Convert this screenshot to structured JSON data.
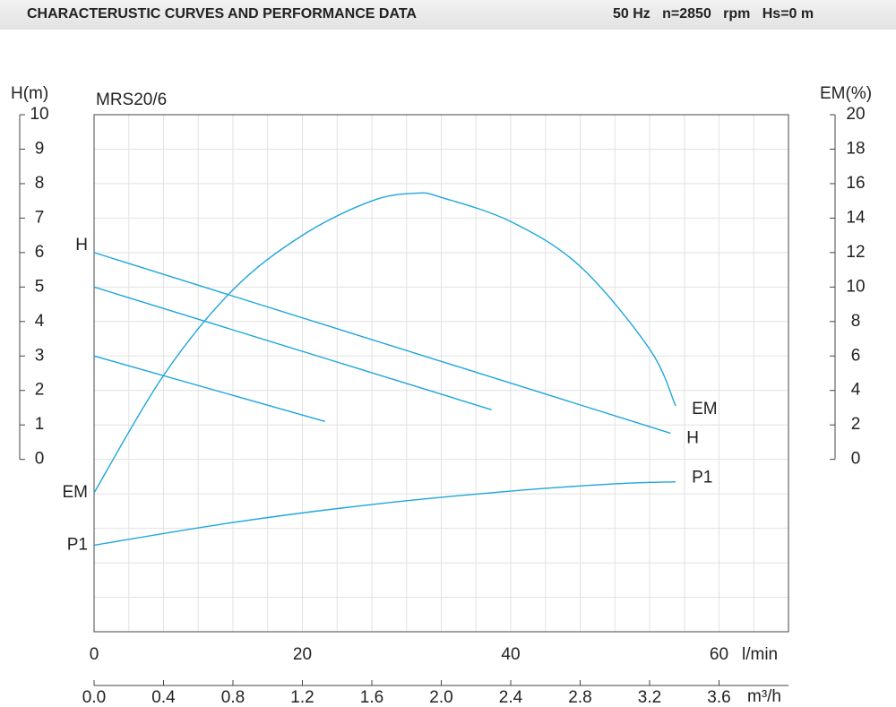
{
  "header": {
    "title": "CHARACTERUSTIC CURVES AND PERFORMANCE DATA",
    "conditions": "50 Hz   n=2850   rpm   Hs=0 m"
  },
  "chart_data": {
    "type": "line",
    "subtitle": "MRS20/6",
    "y_label": "H(m)",
    "y2_label": "EM(%)",
    "x_label": "m³/h",
    "x2_label": "l/min",
    "xlim": [
      0,
      4.0
    ],
    "xticks": [
      {
        "value": 0,
        "label": "0.0"
      },
      0.4,
      0.8,
      1.2,
      1.6,
      {
        "value": 2,
        "label": "2.0"
      },
      2.4,
      2.8,
      3.2,
      3.6
    ],
    "x2lim": [
      0,
      66.67
    ],
    "x2ticks": [
      0,
      20,
      40,
      60
    ],
    "ylim": [
      -5,
      10
    ],
    "yticks": [
      0,
      1,
      2,
      3,
      4,
      5,
      6,
      7,
      8,
      9,
      10
    ],
    "y2lim": [
      -10,
      20
    ],
    "y2ticks": [
      0,
      2,
      4,
      6,
      8,
      10,
      12,
      14,
      16,
      18,
      20
    ],
    "xgrid": [
      0.2,
      0.4,
      0.6,
      0.8,
      1.0,
      1.2,
      1.4,
      1.6,
      1.8,
      2.0,
      2.2,
      2.4,
      2.6,
      2.8,
      3.0,
      3.2,
      3.4,
      3.6,
      3.8
    ],
    "ygrid": [
      -4,
      -3,
      -2,
      -1,
      0,
      1,
      2,
      3,
      4,
      5,
      6,
      7,
      8,
      9
    ],
    "grid": true,
    "series": [
      {
        "name": "H",
        "color": "#1ea6dc",
        "x": [
          0,
          3.32
        ],
        "values": [
          6,
          0.76
        ]
      },
      {
        "color": "#1ea6dc",
        "x": [
          0,
          2.29
        ],
        "values": [
          5,
          1.44
        ]
      },
      {
        "color": "#1ea6dc",
        "x": [
          0,
          1.33
        ],
        "values": [
          3,
          1.1
        ]
      },
      {
        "name": "EM",
        "color": "#1ea6dc",
        "axis": "y2",
        "x": [
          0,
          0.4,
          0.8,
          1.2,
          1.6,
          1.86,
          2.0,
          2.4,
          2.8,
          3.2,
          3.35
        ],
        "values": [
          -1.94,
          4.87,
          9.84,
          13.0,
          15.0,
          15.45,
          15.2,
          13.8,
          11.2,
          6.4,
          3.1
        ]
      },
      {
        "name": "P1",
        "color": "#1ea6dc",
        "x": [
          0,
          0.8,
          1.6,
          2.4,
          3.0,
          3.35
        ],
        "values": [
          -2.49,
          -1.83,
          -1.31,
          -0.92,
          -0.71,
          -0.65
        ]
      }
    ]
  }
}
